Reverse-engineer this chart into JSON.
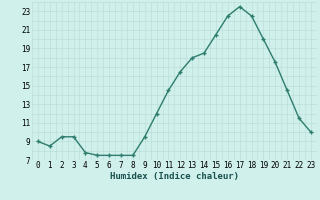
{
  "x": [
    0,
    1,
    2,
    3,
    4,
    5,
    6,
    7,
    8,
    9,
    10,
    11,
    12,
    13,
    14,
    15,
    16,
    17,
    18,
    19,
    20,
    21,
    22,
    23
  ],
  "y": [
    9.0,
    8.5,
    9.5,
    9.5,
    7.8,
    7.5,
    7.5,
    7.5,
    7.5,
    9.5,
    12.0,
    14.5,
    16.5,
    18.0,
    18.5,
    20.5,
    22.5,
    23.5,
    22.5,
    20.0,
    17.5,
    14.5,
    11.5,
    10.0
  ],
  "line_color": "#2e7d6e",
  "marker": "+",
  "marker_size": 3.0,
  "bg_color": "#cff0eb",
  "grid_color_major": "#b8dad4",
  "grid_color_minor": "#b8dad4",
  "xlabel": "Humidex (Indice chaleur)",
  "xlim": [
    -0.5,
    23.5
  ],
  "ylim": [
    7.0,
    24.0
  ],
  "yticks": [
    7,
    9,
    11,
    13,
    15,
    17,
    19,
    21,
    23
  ],
  "xticks": [
    0,
    1,
    2,
    3,
    4,
    5,
    6,
    7,
    8,
    9,
    10,
    11,
    12,
    13,
    14,
    15,
    16,
    17,
    18,
    19,
    20,
    21,
    22,
    23
  ],
  "tick_fontsize": 5.5,
  "xlabel_fontsize": 6.5,
  "line_width": 1.0,
  "marker_color": "#2e7d6e"
}
